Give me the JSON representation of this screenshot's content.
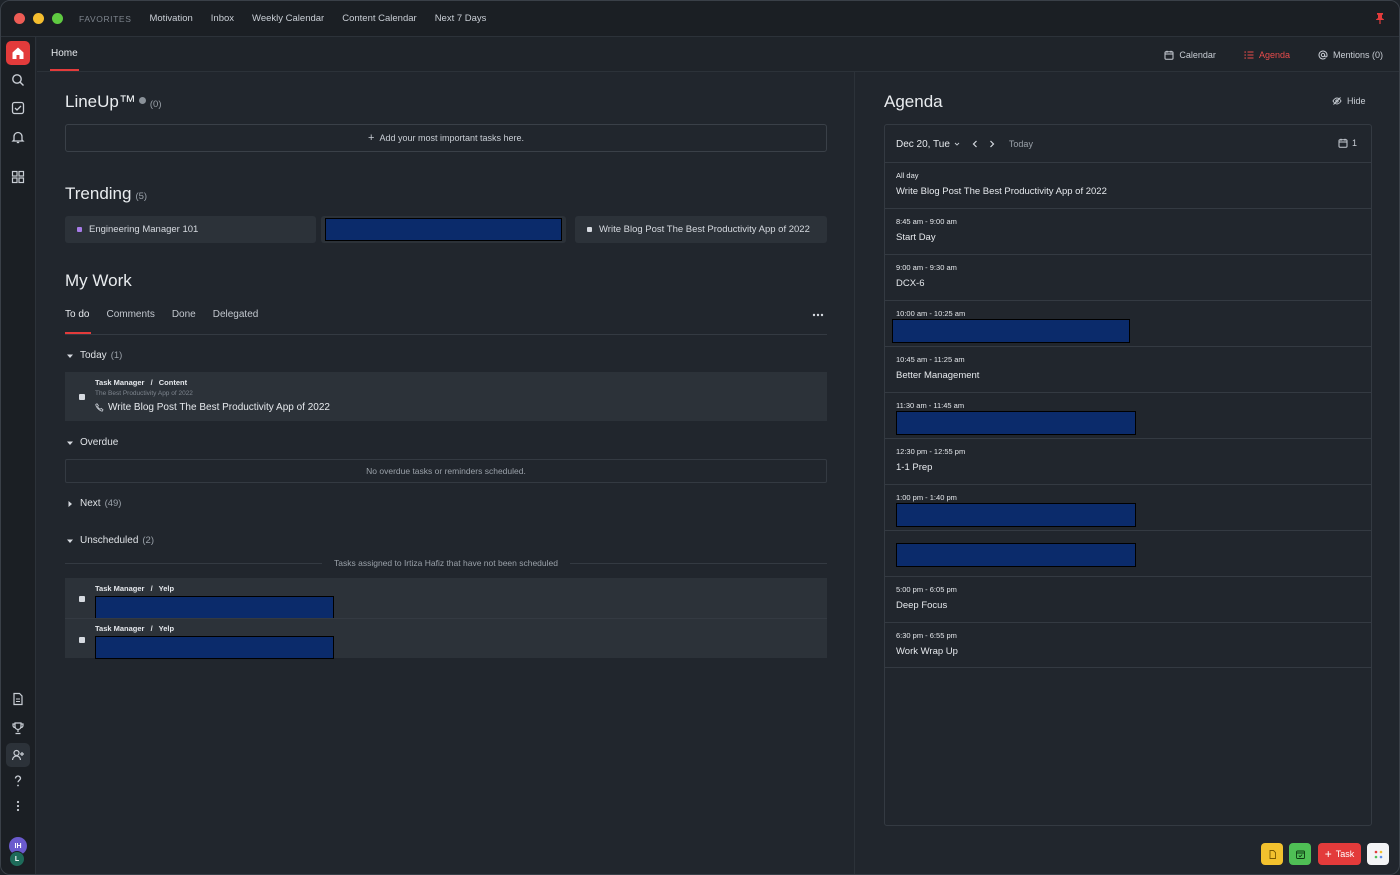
{
  "favorites": {
    "label": "FAVORITES",
    "items": [
      "Motivation",
      "Inbox",
      "Weekly Calendar",
      "Content Calendar",
      "Next 7 Days"
    ]
  },
  "topbar": {
    "home_tab": "Home",
    "calendar": "Calendar",
    "agenda": "Agenda",
    "mentions": "Mentions (0)"
  },
  "lineup": {
    "title": "LineUp™",
    "count": "(0)",
    "add_text": "Add your most important tasks here."
  },
  "trending": {
    "title": "Trending",
    "count": "(5)",
    "items": [
      "Engineering Manager 101",
      "",
      "Write Blog Post The Best Productivity App of 2022"
    ]
  },
  "mywork": {
    "title": "My Work",
    "tabs": [
      "To do",
      "Comments",
      "Done",
      "Delegated"
    ],
    "groups": {
      "today": {
        "label": "Today",
        "count": "(1)"
      },
      "overdue": {
        "label": "Overdue",
        "empty": "No overdue tasks or reminders scheduled."
      },
      "next": {
        "label": "Next",
        "count": "(49)"
      },
      "unscheduled": {
        "label": "Unscheduled",
        "count": "(2)",
        "note": "Tasks assigned to Irtiza Hafiz that have not been scheduled"
      }
    },
    "today_task": {
      "crumb_space": "Task Manager",
      "crumb_list": "Content",
      "parent": "The Best Productivity App of 2022",
      "title": "Write Blog Post The Best Productivity App of 2022"
    },
    "unscheduled_tasks": [
      {
        "crumb_space": "Task Manager",
        "crumb_list": "Yelp"
      },
      {
        "crumb_space": "Task Manager",
        "crumb_list": "Yelp"
      }
    ],
    "crumb_sep": "/"
  },
  "agenda": {
    "title": "Agenda",
    "hide": "Hide",
    "date": "Dec 20, Tue",
    "today": "Today",
    "day_count": "1",
    "events": [
      {
        "time": "All day",
        "title": "Write Blog Post The Best Productivity App of 2022"
      },
      {
        "time": "8:45 am - 9:00 am",
        "title": "Start Day"
      },
      {
        "time": "9:00 am - 9:30 am",
        "title": "DCX-6"
      },
      {
        "time": "10:00 am - 10:25 am",
        "title": ""
      },
      {
        "time": "10:45 am - 11:25 am",
        "title": "Better Management"
      },
      {
        "time": "11:30 am - 11:45 am",
        "title": ""
      },
      {
        "time": "12:30 pm - 12:55 pm",
        "title": "1-1 Prep"
      },
      {
        "time": "1:00 pm - 1:40 pm",
        "title": ""
      },
      {
        "time": "",
        "title": ""
      },
      {
        "time": "5:00 pm - 6:05 pm",
        "title": "Deep Focus"
      },
      {
        "time": "6:30 pm - 6:55 pm",
        "title": "Work Wrap Up"
      }
    ]
  },
  "quick_actions": {
    "task": "Task"
  },
  "user": {
    "initials_primary": "IH",
    "initials_secondary": "L"
  },
  "colors": {
    "accent": "#e33b3b",
    "background": "#21262d",
    "redaction": "#0b2b6b"
  }
}
